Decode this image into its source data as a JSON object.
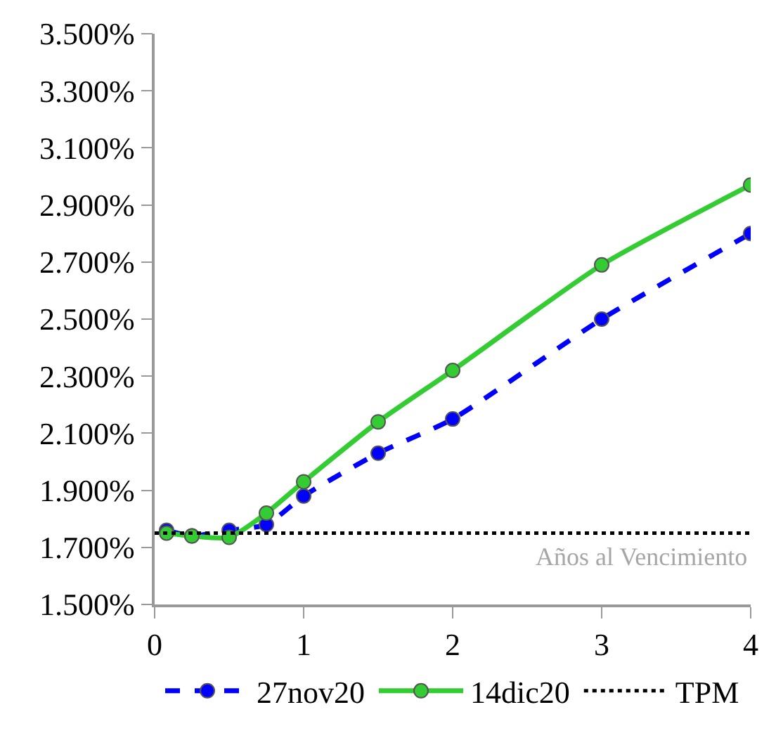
{
  "chart_data": {
    "type": "line",
    "xlabel": "Años al Vencimiento",
    "x": [
      0.08,
      0.25,
      0.5,
      0.75,
      1,
      1.5,
      2,
      3,
      4
    ],
    "series": [
      {
        "name": "27nov20",
        "color": "#0000ff",
        "line_style": "dashed",
        "marker": "circle",
        "values": [
          1.76,
          1.74,
          1.76,
          1.78,
          1.88,
          2.03,
          2.15,
          2.5,
          2.8
        ]
      },
      {
        "name": "14dic20",
        "color": "#33cc33",
        "line_style": "solid",
        "marker": "circle",
        "values": [
          1.75,
          1.74,
          1.735,
          1.82,
          1.93,
          2.14,
          2.32,
          2.69,
          2.97
        ]
      }
    ],
    "ref_lines": [
      {
        "axis": "y",
        "value": 1.75,
        "label": "TPM",
        "color": "#000000",
        "line_style": "dotted"
      }
    ],
    "xlim": [
      0,
      4
    ],
    "xticks": [
      0,
      1,
      2,
      3,
      4
    ],
    "ylim": [
      1.5,
      3.5
    ],
    "yticks": [
      {
        "value": 1.5,
        "label": "1.500%"
      },
      {
        "value": 1.7,
        "label": "1.700%"
      },
      {
        "value": 1.9,
        "label": "1.900%"
      },
      {
        "value": 2.1,
        "label": "2.100%"
      },
      {
        "value": 2.3,
        "label": "2.300%"
      },
      {
        "value": 2.5,
        "label": "2.500%"
      },
      {
        "value": 2.7,
        "label": "2.700%"
      },
      {
        "value": 2.9,
        "label": "2.900%"
      },
      {
        "value": 3.1,
        "label": "3.100%"
      },
      {
        "value": 3.3,
        "label": "3.300%"
      },
      {
        "value": 3.5,
        "label": "3.500%"
      }
    ],
    "legend": "bottom"
  }
}
